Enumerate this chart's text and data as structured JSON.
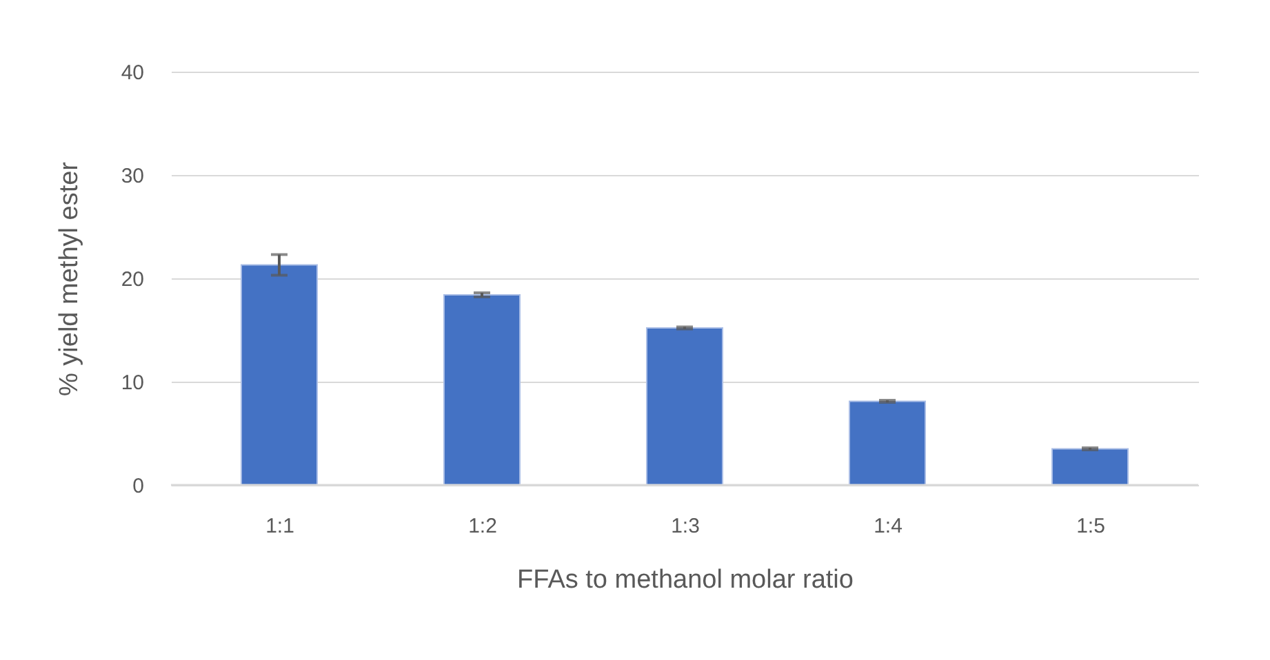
{
  "chart_data": {
    "type": "bar",
    "xlabel": "FFAs to methanol molar ratio",
    "ylabel": "% yield  methyl ester",
    "categories": [
      "1:1",
      "1:2",
      "1:3",
      "1:4",
      "1:5"
    ],
    "values": [
      21.3,
      18.4,
      15.2,
      8.1,
      3.5
    ],
    "errors": [
      1.0,
      0.2,
      0.1,
      0.1,
      0.1
    ],
    "color": "#4472c4",
    "ylim": [
      0,
      40
    ],
    "yticks": [
      0,
      10,
      20,
      30,
      40
    ],
    "grid": "y"
  }
}
